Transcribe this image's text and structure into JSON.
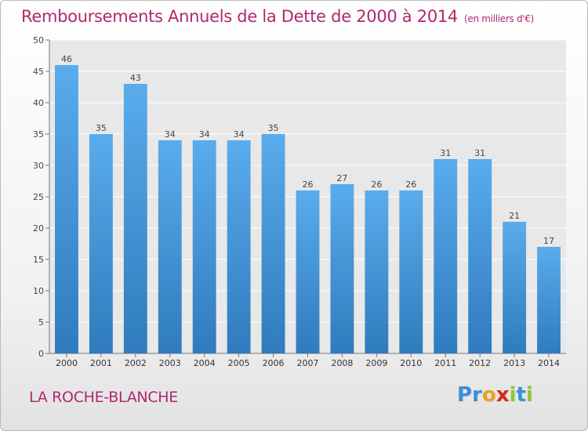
{
  "chart_data": {
    "type": "bar",
    "title": "Remboursements Annuels de la Dette de 2000 à 2014",
    "subtitle": "(en milliers d'€)",
    "categories": [
      "2000",
      "2001",
      "2002",
      "2003",
      "2004",
      "2005",
      "2006",
      "2007",
      "2008",
      "2009",
      "2010",
      "2011",
      "2012",
      "2013",
      "2014"
    ],
    "values": [
      46,
      35,
      43,
      34,
      34,
      34,
      35,
      26,
      27,
      26,
      26,
      31,
      31,
      21,
      17
    ],
    "ylim": [
      0,
      50
    ],
    "yticks": [
      0,
      5,
      10,
      15,
      20,
      25,
      30,
      35,
      40,
      45,
      50
    ],
    "grid": true,
    "bar_color_top": "#5aacec",
    "bar_color_bottom": "#2f7bbd"
  },
  "commune": "LA ROCHE-BLANCHE",
  "logo": {
    "letters": [
      "P",
      "r",
      "o",
      "x",
      "i",
      "t",
      "i"
    ],
    "colors": [
      "#3b8fd6",
      "#3b8fd6",
      "#e8a21c",
      "#d9261c",
      "#8dc63f",
      "#3b8fd6",
      "#8dc63f"
    ]
  },
  "accent_color": "#b0286d"
}
